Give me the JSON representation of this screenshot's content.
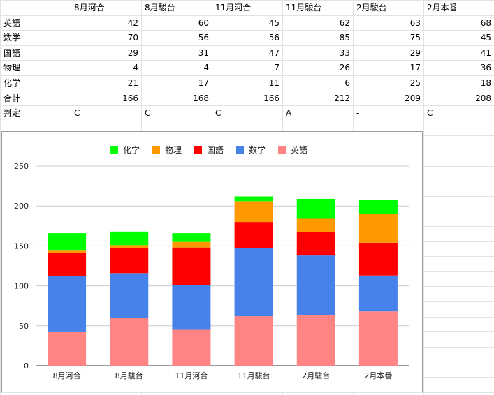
{
  "sheet": {
    "columns": [
      "",
      "8月河合",
      "8月駿台",
      "11月河合",
      "11月駿台",
      "2月駿台",
      "2月本番"
    ],
    "rows": [
      {
        "label": "英語",
        "values": [
          "42",
          "60",
          "45",
          "62",
          "63",
          "68"
        ],
        "align": "num"
      },
      {
        "label": "数学",
        "values": [
          "70",
          "56",
          "56",
          "85",
          "75",
          "45"
        ],
        "align": "num"
      },
      {
        "label": "国語",
        "values": [
          "29",
          "31",
          "47",
          "33",
          "29",
          "41"
        ],
        "align": "num"
      },
      {
        "label": "物理",
        "values": [
          "4",
          "4",
          "7",
          "26",
          "17",
          "36"
        ],
        "align": "num"
      },
      {
        "label": "化学",
        "values": [
          "21",
          "17",
          "11",
          "6",
          "25",
          "18"
        ],
        "align": "num"
      },
      {
        "label": "合計",
        "values": [
          "166",
          "168",
          "166",
          "212",
          "209",
          "208"
        ],
        "align": "num"
      },
      {
        "label": "判定",
        "values": [
          "C",
          "C",
          "C",
          "A",
          "-",
          "C"
        ],
        "align": "text"
      }
    ]
  },
  "chart_data": {
    "type": "bar",
    "stacked": true,
    "categories": [
      "8月河合",
      "8月駿台",
      "11月河合",
      "11月駿台",
      "2月駿台",
      "2月本番"
    ],
    "series": [
      {
        "name": "英語",
        "values": [
          42,
          60,
          45,
          62,
          63,
          68
        ],
        "color": "#ff8585"
      },
      {
        "name": "数学",
        "values": [
          70,
          56,
          56,
          85,
          75,
          45
        ],
        "color": "#4782eb"
      },
      {
        "name": "国語",
        "values": [
          29,
          31,
          47,
          33,
          29,
          41
        ],
        "color": "#ff0000"
      },
      {
        "name": "物理",
        "values": [
          4,
          4,
          7,
          26,
          17,
          36
        ],
        "color": "#ff9900"
      },
      {
        "name": "化学",
        "values": [
          21,
          17,
          11,
          6,
          25,
          18
        ],
        "color": "#00ff00"
      }
    ],
    "legend_order": [
      "化学",
      "物理",
      "国語",
      "数学",
      "英語"
    ],
    "legend_position": "top",
    "ylim": [
      0,
      250
    ],
    "yticks": [
      "0",
      "50",
      "100",
      "150",
      "200",
      "250"
    ],
    "grid": true
  }
}
